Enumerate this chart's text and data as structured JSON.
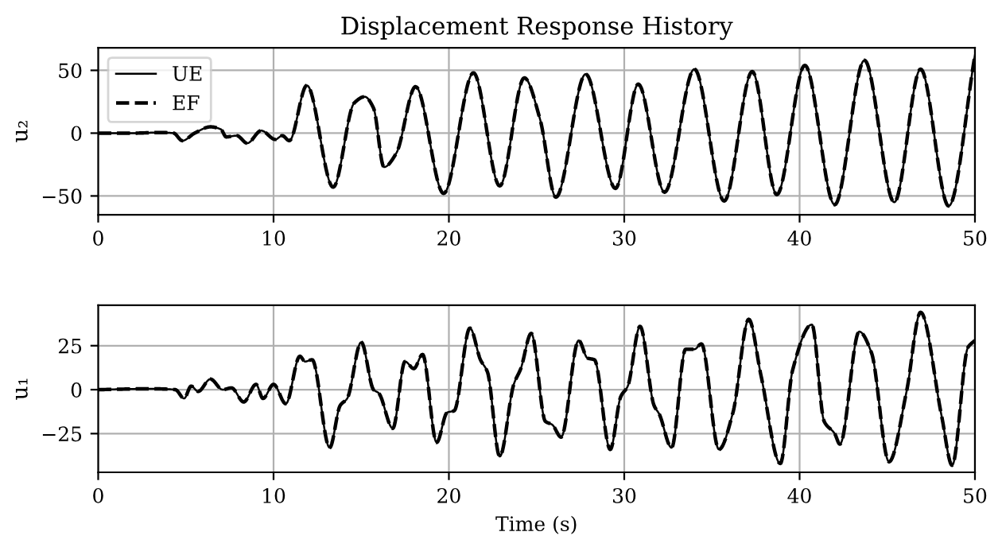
{
  "chart_data": [
    {
      "type": "line",
      "title": "Displacement Response History",
      "ylabel": "u₂",
      "legend": "top left",
      "grid": true,
      "xlim": [
        0,
        50
      ],
      "xticks": [
        0,
        10,
        20,
        30,
        40,
        50
      ],
      "ylim": [
        -65,
        68
      ],
      "yticks": [
        {
          "value": -50,
          "label": "−50"
        },
        0,
        50
      ],
      "x": [
        0,
        2,
        3.5,
        4.3,
        4.8,
        5.5,
        6.4,
        7.0,
        7.3,
        7.9,
        8.5,
        9.3,
        10.1,
        10.5,
        10.9,
        11.9,
        13.4,
        14.6,
        15.2,
        15.7,
        16.3,
        17.0,
        18.1,
        19.7,
        21.4,
        22.9,
        24.3,
        25.2,
        26.1,
        27.8,
        29.5,
        30.8,
        32.3,
        34.0,
        35.7,
        37.3,
        38.7,
        40.3,
        42.0,
        43.7,
        45.4,
        46.9,
        48.5,
        50
      ],
      "series": [
        {
          "name": "UE",
          "color": "#000000",
          "line_style": "solid",
          "values": [
            0,
            0,
            0.5,
            0,
            -6,
            0,
            5,
            3,
            -3,
            -2,
            -8,
            2,
            -5,
            -2,
            -6,
            38,
            -43,
            24,
            29,
            20,
            -27,
            -16,
            37,
            -48,
            48,
            -42,
            44,
            11,
            -51,
            47,
            -44,
            39,
            -47,
            51,
            -54,
            49,
            -49,
            54,
            -57,
            58,
            -55,
            51,
            -58,
            62
          ]
        },
        {
          "name": "EF",
          "color": "#000000",
          "line_style": "dashed",
          "values": [
            0,
            0,
            0.5,
            0,
            -6,
            0,
            5,
            3,
            -3,
            -2,
            -8,
            2,
            -5,
            -2,
            -6,
            38,
            -43,
            24,
            29,
            20,
            -27,
            -16,
            37,
            -48,
            48,
            -42,
            44,
            11,
            -51,
            47,
            -44,
            39,
            -47,
            51,
            -54,
            49,
            -49,
            54,
            -57,
            58,
            -55,
            51,
            -58,
            62
          ]
        }
      ]
    },
    {
      "type": "line",
      "ylabel": "u₁",
      "xlabel": "Time (s)",
      "grid": true,
      "xlim": [
        0,
        50
      ],
      "xticks": [
        0,
        10,
        20,
        30,
        40,
        50
      ],
      "ylim": [
        -47,
        48
      ],
      "yticks": [
        {
          "value": -25,
          "label": "−25"
        },
        0,
        25
      ],
      "x": [
        0,
        3,
        4.4,
        4.9,
        5.3,
        5.7,
        6.4,
        7.1,
        7.6,
        8.3,
        9.0,
        9.4,
        10.0,
        10.7,
        11.5,
        11.8,
        12.2,
        13.2,
        13.8,
        14.2,
        15.0,
        15.7,
        16.0,
        16.8,
        17.5,
        18.0,
        18.5,
        19.3,
        19.9,
        20.3,
        21.2,
        21.8,
        22.2,
        22.9,
        23.7,
        24.1,
        24.7,
        25.5,
        25.9,
        26.4,
        27.4,
        27.9,
        28.3,
        29.2,
        29.8,
        30.2,
        30.9,
        31.7,
        32.0,
        32.7,
        33.5,
        34.0,
        34.4,
        35.4,
        36.2,
        37.1,
        37.8,
        38.9,
        39.6,
        40.7,
        41.4,
        42.0,
        42.3,
        43.4,
        44.1,
        45.1,
        46.1,
        46.9,
        48.1,
        48.7,
        49.6,
        50
      ],
      "series": [
        {
          "color": "#000000",
          "line_style": "solid",
          "values": [
            0,
            0.5,
            0,
            -5,
            2,
            -1,
            6,
            0,
            1,
            -7,
            3,
            -5,
            3,
            -8,
            19,
            16,
            17,
            -33,
            -9,
            -5,
            27,
            0,
            -2,
            -22,
            16,
            12,
            20,
            -30,
            -13,
            -12,
            35,
            17,
            10,
            -38,
            3,
            12,
            32,
            -18,
            -20,
            -27,
            28,
            18,
            17,
            -34,
            -4,
            2,
            36,
            -9,
            -14,
            -33,
            23,
            23,
            26,
            -34,
            -13,
            40,
            8,
            -42,
            11,
            37,
            -18,
            -25,
            -31,
            33,
            21,
            -41,
            -1,
            44,
            -15,
            -43,
            24,
            28
          ]
        },
        {
          "color": "#000000",
          "line_style": "dashed",
          "values": [
            0,
            0.5,
            0,
            -5,
            2,
            -1,
            6,
            0,
            1,
            -7,
            3,
            -5,
            3,
            -8,
            19,
            16,
            17,
            -33,
            -9,
            -5,
            27,
            0,
            -2,
            -22,
            16,
            12,
            20,
            -30,
            -13,
            -12,
            35,
            17,
            10,
            -38,
            3,
            12,
            32,
            -18,
            -20,
            -27,
            28,
            18,
            17,
            -34,
            -4,
            2,
            36,
            -9,
            -14,
            -33,
            23,
            23,
            26,
            -34,
            -13,
            40,
            8,
            -42,
            11,
            37,
            -18,
            -25,
            -31,
            33,
            21,
            -41,
            -1,
            44,
            -15,
            -43,
            24,
            28
          ]
        }
      ]
    }
  ]
}
